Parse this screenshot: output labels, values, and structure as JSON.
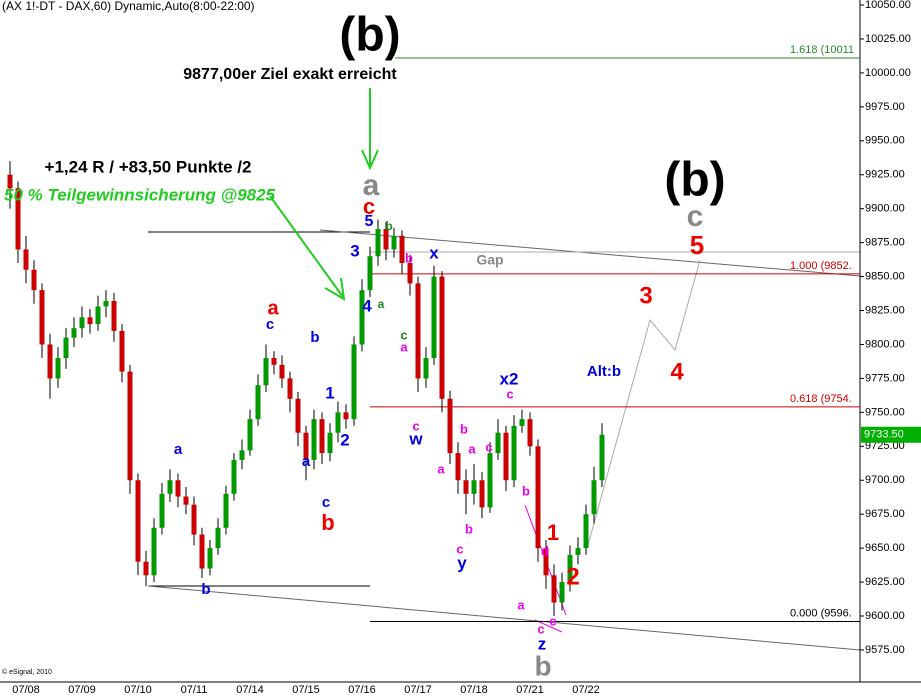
{
  "chart_data": {
    "type": "candlestick",
    "title": "(AX 1!-DT - DAX,60) Dynamic,Auto(8:00-22:00)",
    "footer": "© eSignal, 2010",
    "categories": [
      null,
      null,
      "07/08",
      null,
      null,
      null,
      null,
      null,
      null,
      "07/09",
      null,
      null,
      null,
      null,
      null,
      null,
      "07/10",
      null,
      null,
      null,
      null,
      null,
      null,
      "07/11",
      null,
      null,
      null,
      null,
      null,
      null,
      "07/14",
      null,
      null,
      null,
      null,
      null,
      null,
      "07/15",
      null,
      null,
      null,
      null,
      null,
      null,
      "07/16",
      null,
      null,
      null,
      null,
      null,
      null,
      "07/17",
      null,
      null,
      null,
      null,
      null,
      null,
      "07/18",
      null,
      null,
      null,
      null,
      null,
      null,
      "07/21",
      null,
      null,
      null,
      null,
      null,
      null,
      "07/22",
      null,
      null
    ],
    "open": [
      9925,
      9915,
      9870,
      9855,
      9840,
      9800,
      9775,
      9790,
      9805,
      9812,
      9820,
      9815,
      9828,
      9832,
      9810,
      9780,
      9700,
      9640,
      9630,
      9665,
      9690,
      9700,
      9688,
      9682,
      9660,
      9635,
      9650,
      9665,
      9690,
      9715,
      9722,
      9745,
      9770,
      9790,
      9785,
      9775,
      9760,
      9735,
      9715,
      9745,
      9720,
      9735,
      9750,
      9745,
      9800,
      9840,
      9865,
      9885,
      9870,
      9880,
      9860,
      9845,
      9775,
      9790,
      9850,
      9760,
      9720,
      9700,
      9690,
      9700,
      9680,
      9720,
      9735,
      9700,
      9740,
      9745,
      9725,
      9650,
      9630,
      9610,
      9625,
      9645,
      9650,
      9675,
      9700
    ],
    "high": [
      9935,
      9920,
      9880,
      9862,
      9845,
      9808,
      9798,
      9812,
      9820,
      9828,
      9826,
      9836,
      9840,
      9838,
      9815,
      9785,
      9705,
      9648,
      9672,
      9698,
      9708,
      9705,
      9695,
      9688,
      9665,
      9656,
      9672,
      9696,
      9720,
      9730,
      9752,
      9778,
      9800,
      9795,
      9792,
      9780,
      9765,
      9740,
      9752,
      9750,
      9742,
      9758,
      9756,
      9806,
      9848,
      9872,
      9892,
      9890,
      9886,
      9884,
      9866,
      9850,
      9798,
      9858,
      9854,
      9766,
      9728,
      9708,
      9712,
      9706,
      9728,
      9745,
      9740,
      9748,
      9752,
      9750,
      9730,
      9656,
      9638,
      9632,
      9652,
      9658,
      9682,
      9710,
      9742
    ],
    "low": [
      9900,
      9860,
      9845,
      9830,
      9790,
      9760,
      9768,
      9782,
      9798,
      9805,
      9808,
      9810,
      9820,
      9802,
      9772,
      9690,
      9630,
      9622,
      9625,
      9660,
      9684,
      9680,
      9675,
      9652,
      9628,
      9630,
      9645,
      9660,
      9685,
      9708,
      9718,
      9740,
      9765,
      9778,
      9768,
      9750,
      9725,
      9700,
      9708,
      9712,
      9714,
      9728,
      9738,
      9740,
      9795,
      9835,
      9858,
      9862,
      9864,
      9852,
      9836,
      9765,
      9768,
      9785,
      9750,
      9712,
      9690,
      9675,
      9682,
      9672,
      9676,
      9715,
      9692,
      9695,
      9735,
      9718,
      9640,
      9620,
      9600,
      9604,
      9618,
      9638,
      9645,
      9668,
      9695
    ],
    "close": [
      9915,
      9870,
      9855,
      9840,
      9800,
      9775,
      9790,
      9805,
      9812,
      9820,
      9815,
      9828,
      9832,
      9810,
      9780,
      9700,
      9640,
      9630,
      9665,
      9690,
      9700,
      9688,
      9682,
      9660,
      9635,
      9650,
      9665,
      9690,
      9715,
      9722,
      9745,
      9770,
      9790,
      9785,
      9775,
      9760,
      9735,
      9715,
      9745,
      9720,
      9735,
      9750,
      9745,
      9800,
      9840,
      9865,
      9885,
      9870,
      9880,
      9860,
      9845,
      9775,
      9790,
      9850,
      9760,
      9720,
      9700,
      9690,
      9700,
      9680,
      9720,
      9735,
      9700,
      9740,
      9745,
      9725,
      9650,
      9630,
      9610,
      9625,
      9645,
      9650,
      9675,
      9700,
      9733.5
    ],
    "up_color": "#009900",
    "down_color": "#cc0000",
    "ylim": [
      9551.4,
      10053.7
    ],
    "yticks": [
      {
        "value": 9575,
        "label": "9575.00"
      },
      {
        "value": 9600,
        "label": "9600.00"
      },
      {
        "value": 9625,
        "label": "9625.00"
      },
      {
        "value": 9650,
        "label": "9650.00"
      },
      {
        "value": 9675,
        "label": "9675.00"
      },
      {
        "value": 9700,
        "label": "9700.00"
      },
      {
        "value": 9725,
        "label": "9725.00"
      },
      {
        "value": 9750,
        "label": "9750.00"
      },
      {
        "value": 9775,
        "label": "9775.00"
      },
      {
        "value": 9800,
        "label": "9800.00"
      },
      {
        "value": 9825,
        "label": "9825.00"
      },
      {
        "value": 9850,
        "label": "9850.00"
      },
      {
        "value": 9875,
        "label": "9875.00"
      },
      {
        "value": 9900,
        "label": "9900.00"
      },
      {
        "value": 9925,
        "label": "9925.00"
      },
      {
        "value": 9950,
        "label": "9950.00"
      },
      {
        "value": 9975,
        "label": "9975.00"
      },
      {
        "value": 10000,
        "label": "10000.00"
      },
      {
        "value": 10025,
        "label": "10025.00"
      },
      {
        "value": 10050,
        "label": "10050.00"
      }
    ],
    "last": {
      "value": 9733.5,
      "label": "9733.50",
      "color": "#00b000"
    },
    "fib_levels": [
      {
        "value": 10011,
        "label": "1.618 (10011",
        "color": "#2a8a2a"
      },
      {
        "value": 9852,
        "label": "1.000 (9852.",
        "color": "#cc0000"
      },
      {
        "value": 9754,
        "label": "0.618 (9754.",
        "color": "#cc0000"
      },
      {
        "value": 9596,
        "label": "0.000 (9596.",
        "color": "#000000"
      }
    ],
    "annotations": [
      {
        "text": "(b)",
        "color": "#000000"
      },
      {
        "text": "9877,00er Ziel exakt erreicht",
        "color": "#000000"
      },
      {
        "text": "+1,24 R / +83,50 Punkte /2",
        "color": "#000000"
      },
      {
        "text": "50 % Teilgewinnsicherung @9825",
        "color": "#22cc22"
      },
      {
        "text": "a",
        "color": "#888888"
      },
      {
        "text": "c",
        "color": "#ee0000"
      },
      {
        "text": "5",
        "color": "#0000dd"
      },
      {
        "text": "b",
        "color": "#228822"
      },
      {
        "text": "3",
        "color": "#0000dd"
      },
      {
        "text": "4",
        "color": "#0000dd"
      },
      {
        "text": "a",
        "color": "#228822"
      },
      {
        "text": "x",
        "color": "#0000dd"
      },
      {
        "text": "b",
        "color": "#ee00ee"
      },
      {
        "text": "Gap",
        "color": "#888888"
      },
      {
        "text": "(b)",
        "color": "#000000"
      },
      {
        "text": "c",
        "color": "#888888"
      },
      {
        "text": "5",
        "color": "#ee0000"
      },
      {
        "text": "3",
        "color": "#ee0000"
      },
      {
        "text": "4",
        "color": "#ee0000"
      },
      {
        "text": "Alt:b",
        "color": "#0000dd"
      },
      {
        "text": "a",
        "color": "#ee0000"
      },
      {
        "text": "c",
        "color": "#0000dd"
      },
      {
        "text": "b",
        "color": "#0000dd"
      },
      {
        "text": "1",
        "color": "#0000dd"
      },
      {
        "text": "2",
        "color": "#0000dd"
      },
      {
        "text": "a",
        "color": "#0000dd"
      },
      {
        "text": "c",
        "color": "#0000dd"
      },
      {
        "text": "b",
        "color": "#ee0000"
      },
      {
        "text": "a",
        "color": "#0000dd"
      },
      {
        "text": "b",
        "color": "#0000dd"
      },
      {
        "text": "c",
        "color": "#228822"
      },
      {
        "text": "a",
        "color": "#ee00ee"
      },
      {
        "text": "c",
        "color": "#ee00ee"
      },
      {
        "text": "w",
        "color": "#0000dd"
      },
      {
        "text": "a",
        "color": "#ee00ee"
      },
      {
        "text": "b",
        "color": "#ee00ee"
      },
      {
        "text": "a",
        "color": "#ee00ee"
      },
      {
        "text": "c",
        "color": "#ee00ee"
      },
      {
        "text": "b",
        "color": "#ee00ee"
      },
      {
        "text": "c",
        "color": "#ee00ee"
      },
      {
        "text": "y",
        "color": "#0000dd"
      },
      {
        "text": "x2",
        "color": "#0000dd"
      },
      {
        "text": "c",
        "color": "#ee00ee"
      },
      {
        "text": "b",
        "color": "#ee00ee"
      },
      {
        "text": "d",
        "color": "#ee00ee"
      },
      {
        "text": "1",
        "color": "#ee0000"
      },
      {
        "text": "2",
        "color": "#ee0000"
      },
      {
        "text": "a",
        "color": "#ee00ee"
      },
      {
        "text": "c",
        "color": "#ee00ee"
      },
      {
        "text": "e",
        "color": "#ee00ee"
      },
      {
        "text": "z",
        "color": "#0000dd"
      },
      {
        "text": "b",
        "color": "#888888"
      }
    ]
  }
}
